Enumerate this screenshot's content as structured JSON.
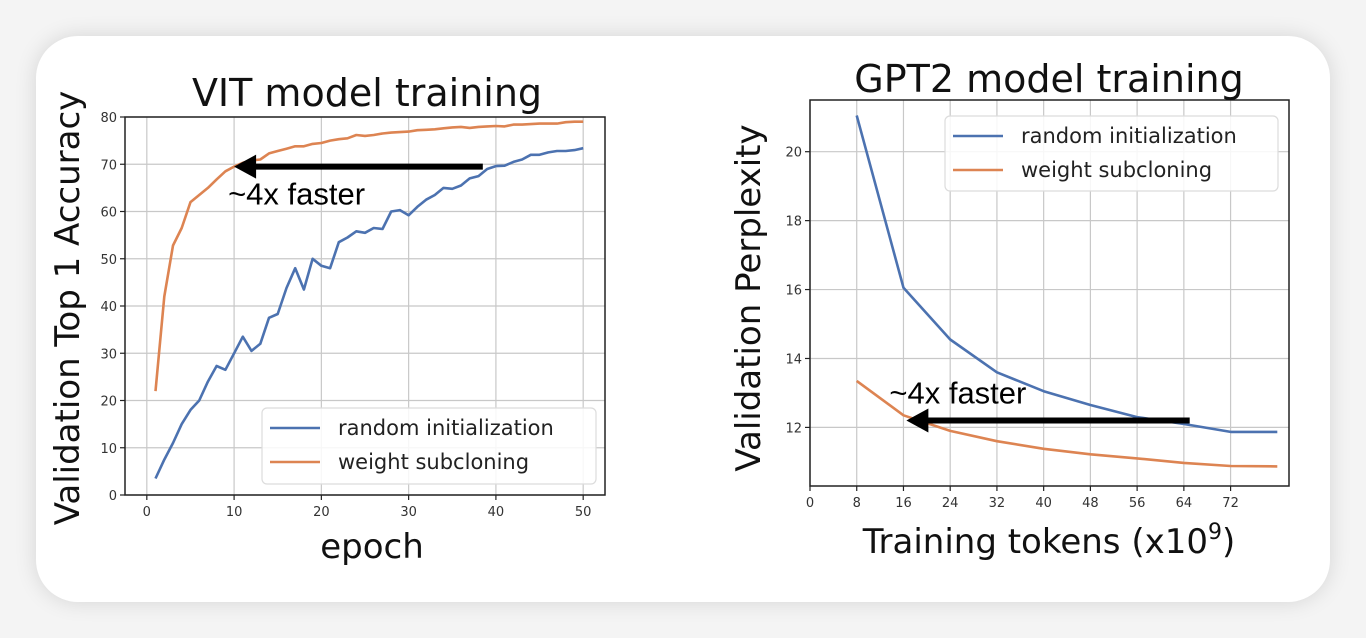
{
  "colors": {
    "random": "#4c72b0",
    "subcloning": "#dd8452",
    "grid": "#c8c8c8",
    "arrow": "#000000"
  },
  "chart_data": [
    {
      "type": "line",
      "title": "VIT model training",
      "xlabel": "epoch",
      "ylabel": "Validation Top 1 Accuracy",
      "xlim": [
        -2.5,
        52.5
      ],
      "ylim": [
        0,
        80
      ],
      "xticks": [
        0,
        10,
        20,
        30,
        40,
        50
      ],
      "yticks": [
        0,
        10,
        20,
        30,
        40,
        50,
        60,
        70,
        80
      ],
      "grid": true,
      "legend_position": "lower-right",
      "series": [
        {
          "name": "random initialization",
          "color_key": "random",
          "x": [
            1,
            2,
            3,
            4,
            5,
            6,
            7,
            8,
            9,
            10,
            11,
            12,
            13,
            14,
            15,
            16,
            17,
            18,
            19,
            20,
            21,
            22,
            23,
            24,
            25,
            26,
            27,
            28,
            29,
            30,
            31,
            32,
            33,
            34,
            35,
            36,
            37,
            38,
            39,
            40,
            41,
            42,
            43,
            44,
            45,
            46,
            47,
            48,
            49,
            50
          ],
          "y": [
            3.5,
            7.5,
            11,
            15,
            18,
            20,
            24,
            27.3,
            26.5,
            30,
            33.5,
            30.5,
            32,
            37.5,
            38.3,
            43.8,
            48,
            43.5,
            50,
            48.5,
            48,
            53.5,
            54.5,
            55.8,
            55.5,
            56.5,
            56.3,
            60,
            60.3,
            59.2,
            61,
            62.5,
            63.5,
            65,
            64.8,
            65.5,
            67,
            67.5,
            69,
            69.6,
            69.7,
            70.5,
            71,
            72,
            72,
            72.5,
            72.8,
            72.8,
            73,
            73.4
          ]
        },
        {
          "name": "weight subcloning",
          "color_key": "subcloning",
          "x": [
            1,
            2,
            3,
            4,
            5,
            6,
            7,
            8,
            9,
            10,
            11,
            12,
            13,
            14,
            15,
            16,
            17,
            18,
            19,
            20,
            21,
            22,
            23,
            24,
            25,
            26,
            27,
            28,
            29,
            30,
            31,
            32,
            33,
            34,
            35,
            36,
            37,
            38,
            39,
            40,
            41,
            42,
            43,
            44,
            45,
            46,
            47,
            48,
            49,
            50
          ],
          "y": [
            22,
            42,
            52.8,
            56.5,
            62,
            63.5,
            65,
            66.8,
            68.5,
            69.5,
            70.3,
            70.8,
            71,
            72.3,
            72.8,
            73.3,
            73.8,
            73.8,
            74.3,
            74.5,
            75,
            75.3,
            75.5,
            76.2,
            76,
            76.2,
            76.5,
            76.7,
            76.8,
            76.9,
            77.2,
            77.3,
            77.4,
            77.6,
            77.8,
            77.9,
            77.7,
            77.9,
            78,
            78.1,
            78,
            78.4,
            78.4,
            78.5,
            78.6,
            78.6,
            78.6,
            78.9,
            79,
            79
          ]
        }
      ],
      "annotation": {
        "text": "~4x faster",
        "arrow_from": [
          38.5,
          69.5
        ],
        "arrow_to": [
          10,
          69.5
        ]
      }
    },
    {
      "type": "line",
      "title": "GPT2 model training",
      "xlabel_main": "Training tokens (x10",
      "xlabel_sup": "9",
      "xlabel_end": ")",
      "ylabel": "Validation Perplexity",
      "xlim": [
        0,
        82
      ],
      "ylim": [
        10.3,
        21.5
      ],
      "xticks": [
        0,
        8,
        16,
        24,
        32,
        40,
        48,
        56,
        64,
        72
      ],
      "yticks": [
        12,
        14,
        16,
        18,
        20
      ],
      "grid": true,
      "legend_position": "upper-right",
      "series": [
        {
          "name": "random initialization",
          "color_key": "random",
          "x": [
            8,
            16,
            24,
            32,
            40,
            48,
            56,
            64,
            72,
            80
          ],
          "y": [
            21.05,
            16.05,
            14.55,
            13.6,
            13.05,
            12.65,
            12.3,
            12.1,
            11.87,
            11.87
          ]
        },
        {
          "name": "weight subcloning",
          "color_key": "subcloning",
          "x": [
            8,
            16,
            24,
            32,
            40,
            48,
            56,
            64,
            72,
            80
          ],
          "y": [
            13.35,
            12.35,
            11.9,
            11.6,
            11.38,
            11.22,
            11.1,
            10.97,
            10.88,
            10.87
          ]
        }
      ],
      "annotation": {
        "text": "~4x faster",
        "arrow_from": [
          65,
          12.2
        ],
        "arrow_to": [
          16.5,
          12.2
        ]
      }
    }
  ]
}
